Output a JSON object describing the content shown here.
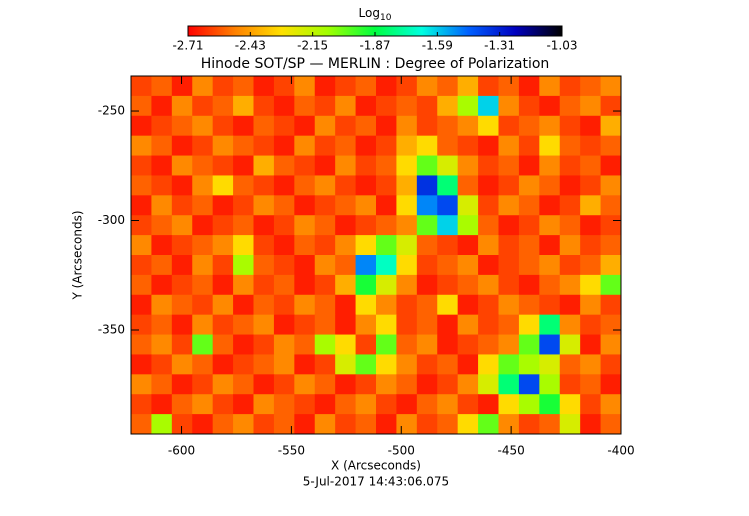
{
  "chart_data": {
    "type": "heatmap",
    "title": "Hinode SOT/SP — MERLIN : Degree of Polarization",
    "xlabel": "X (Arcseconds)",
    "ylabel": "Y (Arcseconds)",
    "footer": "5-Jul-2017 14:43:06.075",
    "colorbar": {
      "label": "Log",
      "label_sub": "10",
      "lim": [
        -2.71,
        -1.03
      ],
      "ticks": [
        -2.71,
        -2.43,
        -2.15,
        -1.87,
        -1.59,
        -1.31,
        -1.03
      ]
    },
    "colormap": [
      "#ff0000",
      "#ff8000",
      "#ffe000",
      "#a0ff00",
      "#00ff40",
      "#00ffe0",
      "#0060ff",
      "#0000c0",
      "#000000"
    ],
    "xlim": [
      -623,
      -400
    ],
    "ylim": [
      -397.5,
      -234
    ],
    "xticks": [
      -600,
      -550,
      -500,
      -450,
      -400
    ],
    "yticks": [
      -350,
      -300,
      -250
    ],
    "z": [
      [
        -2.6,
        -2.55,
        -2.66,
        -2.48,
        -2.6,
        -2.55,
        -2.66,
        -2.6,
        -2.48,
        -2.66,
        -2.6,
        -2.55,
        -2.66,
        -2.6,
        -2.48,
        -2.55,
        -2.4,
        -2.6,
        -2.55,
        -2.66,
        -2.48,
        -2.6,
        -2.55,
        -2.48
      ],
      [
        -2.55,
        -2.66,
        -2.48,
        -2.6,
        -2.55,
        -2.4,
        -2.6,
        -2.66,
        -2.55,
        -2.6,
        -2.48,
        -2.66,
        -2.6,
        -2.55,
        -2.6,
        -2.4,
        -2.1,
        -1.6,
        -2.48,
        -2.6,
        -2.66,
        -2.55,
        -2.48,
        -2.6
      ],
      [
        -2.66,
        -2.6,
        -2.55,
        -2.48,
        -2.6,
        -2.66,
        -2.55,
        -2.6,
        -2.66,
        -2.48,
        -2.6,
        -2.55,
        -2.66,
        -2.48,
        -2.6,
        -2.55,
        -2.48,
        -2.3,
        -2.6,
        -2.55,
        -2.48,
        -2.6,
        -2.66,
        -2.4
      ],
      [
        -2.48,
        -2.55,
        -2.66,
        -2.6,
        -2.48,
        -2.55,
        -2.6,
        -2.66,
        -2.48,
        -2.6,
        -2.55,
        -2.66,
        -2.6,
        -2.4,
        -2.3,
        -2.55,
        -2.6,
        -2.66,
        -2.48,
        -2.6,
        -2.3,
        -2.55,
        -2.6,
        -2.55
      ],
      [
        -2.6,
        -2.66,
        -2.48,
        -2.55,
        -2.6,
        -2.66,
        -2.4,
        -2.55,
        -2.6,
        -2.66,
        -2.48,
        -2.6,
        -2.55,
        -2.3,
        -2.0,
        -2.2,
        -2.48,
        -2.6,
        -2.55,
        -2.66,
        -2.48,
        -2.6,
        -2.55,
        -2.66
      ],
      [
        -2.55,
        -2.6,
        -2.66,
        -2.48,
        -2.3,
        -2.55,
        -2.6,
        -2.66,
        -2.55,
        -2.48,
        -2.6,
        -2.66,
        -2.6,
        -2.4,
        -1.35,
        -1.8,
        -2.55,
        -2.66,
        -2.6,
        -2.48,
        -2.55,
        -2.66,
        -2.6,
        -2.48
      ],
      [
        -2.66,
        -2.48,
        -2.6,
        -2.55,
        -2.66,
        -2.6,
        -2.48,
        -2.55,
        -2.66,
        -2.6,
        -2.55,
        -2.48,
        -2.66,
        -2.3,
        -1.5,
        -1.4,
        -2.2,
        -2.6,
        -2.48,
        -2.55,
        -2.66,
        -2.6,
        -2.4,
        -2.55
      ],
      [
        -2.6,
        -2.55,
        -2.48,
        -2.66,
        -2.6,
        -2.55,
        -2.66,
        -2.6,
        -2.48,
        -2.55,
        -2.66,
        -2.6,
        -2.55,
        -2.48,
        -2.0,
        -1.6,
        -2.1,
        -2.55,
        -2.66,
        -2.6,
        -2.48,
        -2.55,
        -2.66,
        -2.6
      ],
      [
        -2.48,
        -2.66,
        -2.6,
        -2.55,
        -2.48,
        -2.3,
        -2.6,
        -2.66,
        -2.55,
        -2.6,
        -2.48,
        -2.3,
        -2.0,
        -2.2,
        -2.55,
        -2.6,
        -2.66,
        -2.48,
        -2.6,
        -2.55,
        -2.66,
        -2.48,
        -2.6,
        -2.55
      ],
      [
        -2.6,
        -2.55,
        -2.66,
        -2.48,
        -2.6,
        -2.1,
        -2.55,
        -2.6,
        -2.66,
        -2.48,
        -2.55,
        -1.5,
        -1.7,
        -2.3,
        -2.6,
        -2.55,
        -2.48,
        -2.66,
        -2.6,
        -2.55,
        -2.48,
        -2.6,
        -2.55,
        -2.4
      ],
      [
        -2.55,
        -2.66,
        -2.6,
        -2.55,
        -2.66,
        -2.48,
        -2.6,
        -2.55,
        -2.66,
        -2.6,
        -2.4,
        -1.9,
        -2.2,
        -2.48,
        -2.66,
        -2.6,
        -2.55,
        -2.48,
        -2.6,
        -2.66,
        -2.55,
        -2.48,
        -2.3,
        -2.0
      ],
      [
        -2.66,
        -2.48,
        -2.55,
        -2.6,
        -2.48,
        -2.66,
        -2.55,
        -2.6,
        -2.48,
        -2.55,
        -2.66,
        -2.3,
        -2.48,
        -2.6,
        -2.55,
        -2.3,
        -2.66,
        -2.6,
        -2.48,
        -2.55,
        -2.6,
        -2.66,
        -2.48,
        -2.6
      ],
      [
        -2.6,
        -2.55,
        -2.66,
        -2.48,
        -2.6,
        -2.55,
        -2.48,
        -2.66,
        -2.6,
        -2.55,
        -2.66,
        -2.48,
        -2.3,
        -2.6,
        -2.55,
        -2.66,
        -2.48,
        -2.6,
        -2.55,
        -2.3,
        -1.8,
        -2.48,
        -2.6,
        -2.55
      ],
      [
        -2.55,
        -2.48,
        -2.6,
        -2.0,
        -2.55,
        -2.66,
        -2.6,
        -2.48,
        -2.55,
        -2.1,
        -2.3,
        -2.6,
        -2.0,
        -2.55,
        -2.48,
        -2.66,
        -2.6,
        -2.55,
        -2.48,
        -2.0,
        -1.4,
        -2.2,
        -2.66,
        -2.48
      ],
      [
        -2.66,
        -2.6,
        -2.48,
        -2.55,
        -2.66,
        -2.6,
        -2.55,
        -2.48,
        -2.66,
        -2.6,
        -2.2,
        -2.0,
        -2.3,
        -2.48,
        -2.6,
        -2.55,
        -2.66,
        -2.3,
        -2.0,
        -2.1,
        -2.2,
        -2.55,
        -2.48,
        -2.6
      ],
      [
        -2.48,
        -2.55,
        -2.66,
        -2.6,
        -2.48,
        -2.55,
        -2.66,
        -2.6,
        -2.48,
        -2.55,
        -2.66,
        -2.6,
        -2.48,
        -2.55,
        -2.66,
        -2.6,
        -2.48,
        -2.2,
        -1.8,
        -1.4,
        -2.1,
        -2.6,
        -2.55,
        -2.66
      ],
      [
        -2.6,
        -2.66,
        -2.55,
        -2.48,
        -2.6,
        -2.66,
        -2.48,
        -2.55,
        -2.6,
        -2.66,
        -2.55,
        -2.48,
        -2.6,
        -2.66,
        -2.55,
        -2.48,
        -2.6,
        -2.66,
        -2.3,
        -2.1,
        -1.9,
        -2.3,
        -2.6,
        -2.48
      ],
      [
        -2.55,
        -2.1,
        -2.6,
        -2.66,
        -2.55,
        -2.48,
        -2.6,
        -2.55,
        -2.66,
        -2.48,
        -2.6,
        -2.55,
        -2.66,
        -2.48,
        -2.6,
        -2.55,
        -2.3,
        -2.0,
        -2.48,
        -2.6,
        -2.55,
        -2.2,
        -2.66,
        -2.55
      ]
    ]
  }
}
